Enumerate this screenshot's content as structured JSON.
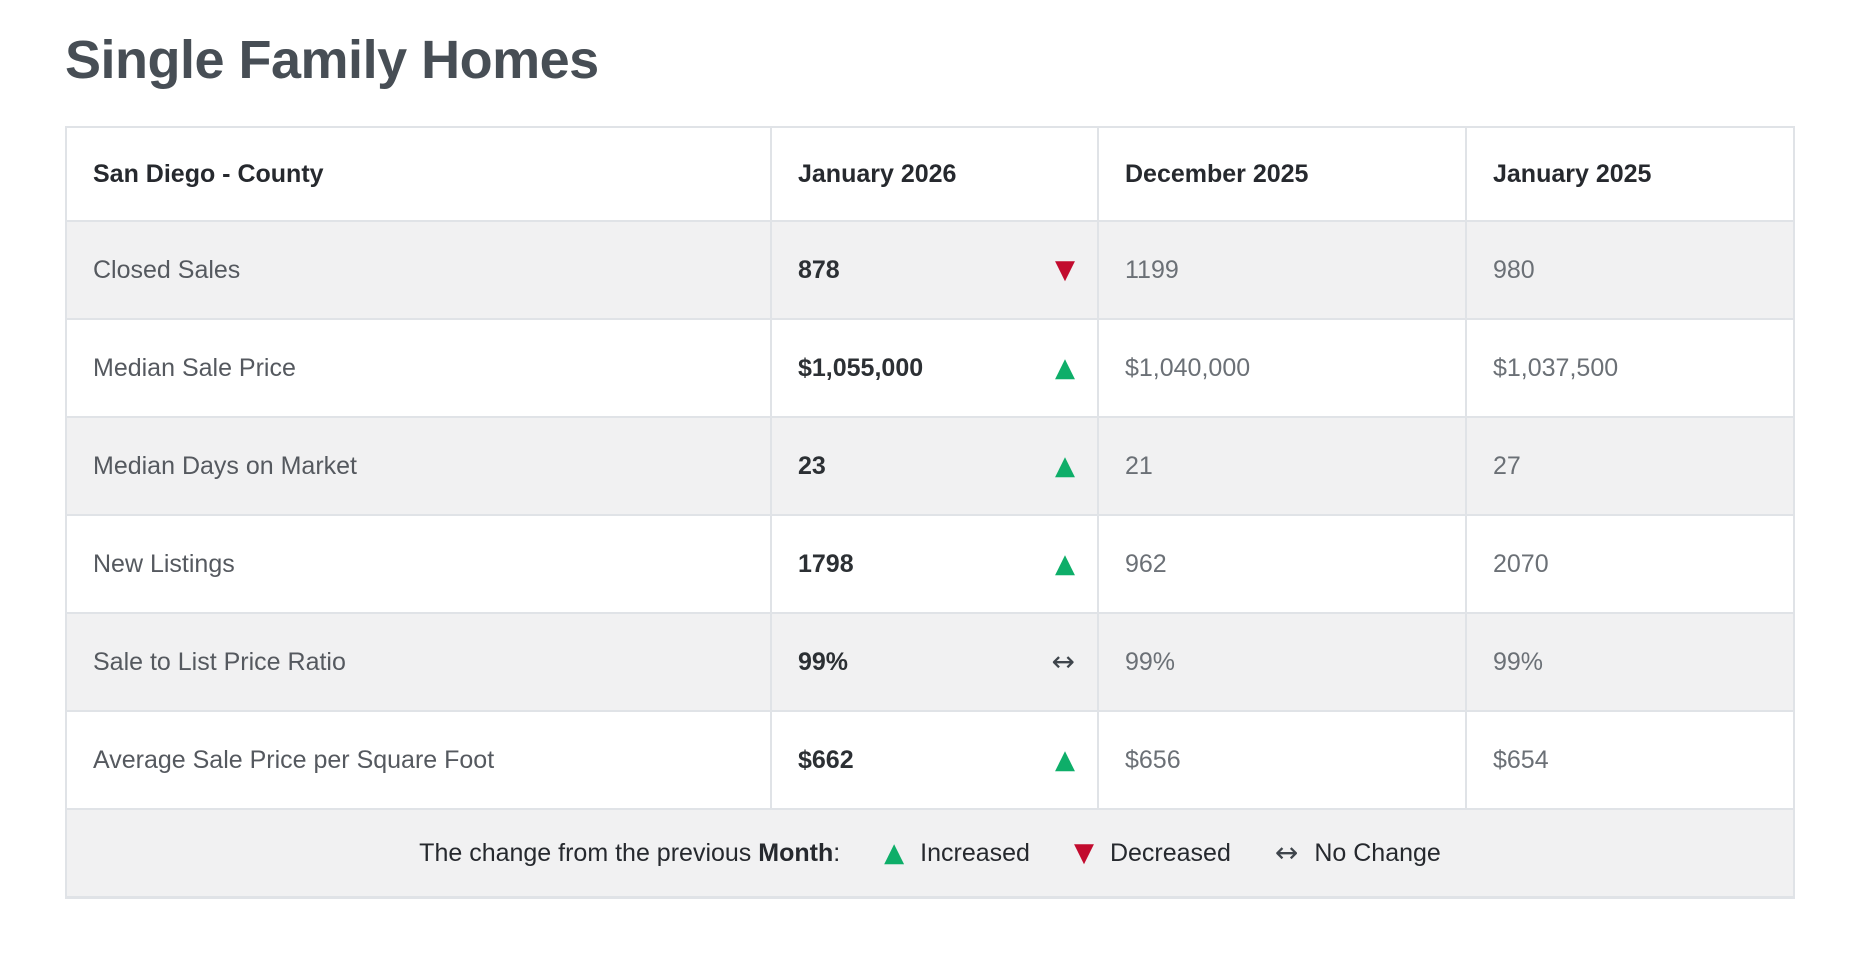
{
  "page": {
    "title": "Single Family Homes"
  },
  "table": {
    "region_label": "San Diego - County",
    "columns": [
      "January 2026",
      "December 2025",
      "January 2025"
    ],
    "rows": [
      {
        "metric": "Closed Sales",
        "current": "878",
        "trend": "down",
        "prev_month": "1199",
        "prev_year": "980"
      },
      {
        "metric": "Median Sale Price",
        "current": "$1,055,000",
        "trend": "up",
        "prev_month": "$1,040,000",
        "prev_year": "$1,037,500"
      },
      {
        "metric": "Median Days on Market",
        "current": "23",
        "trend": "up",
        "prev_month": "21",
        "prev_year": "27"
      },
      {
        "metric": "New Listings",
        "current": "1798",
        "trend": "up",
        "prev_month": "962",
        "prev_year": "2070"
      },
      {
        "metric": "Sale to List Price Ratio",
        "current": "99%",
        "trend": "none",
        "prev_month": "99%",
        "prev_year": "99%"
      },
      {
        "metric": "Average Sale Price per Square Foot",
        "current": "$662",
        "trend": "up",
        "prev_month": "$656",
        "prev_year": "$654"
      }
    ],
    "legend": {
      "prefix": "The change from the previous ",
      "period_bold": "Month",
      "suffix": ":",
      "increased_label": "Increased",
      "decreased_label": "Decreased",
      "no_change_label": "No Change"
    }
  },
  "symbols": {
    "up": "▲",
    "down": "▼",
    "none": "↔"
  },
  "colors": {
    "increased": "#0eae69",
    "decreased": "#c20b2e",
    "no_change": "#3f454c"
  }
}
